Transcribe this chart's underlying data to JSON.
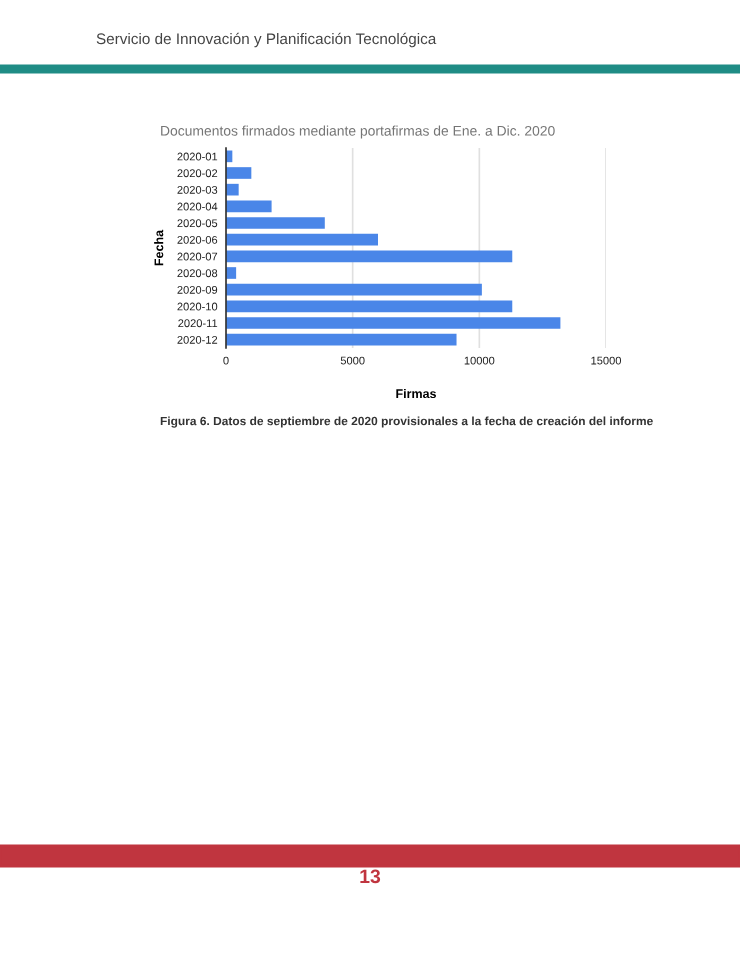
{
  "chart_data": {
    "type": "bar",
    "orientation": "horizontal",
    "title": "Documentos firmados mediante portafirmas de Ene. a Dic. 2020",
    "xlabel": "Firmas",
    "ylabel": "Fecha",
    "categories": [
      "2020-01",
      "2020-02",
      "2020-03",
      "2020-04",
      "2020-05",
      "2020-06",
      "2020-07",
      "2020-08",
      "2020-09",
      "2020-10",
      "2020-11",
      "2020-12"
    ],
    "series": [
      {
        "color": "#4a86e8",
        "values": [
          250,
          1000,
          500,
          1800,
          3900,
          6000,
          11300,
          400,
          10100,
          11300,
          13200,
          9100
        ]
      }
    ],
    "xlim": [
      0,
      15000
    ],
    "xticks": [
      0,
      5000,
      10000,
      15000
    ],
    "grid": "x",
    "legend": false,
    "annotations": [
      "Servicio de Innovación y Planificación Tecnológica",
      "Figura 6. Datos de septiembre de 2020 provisionales a la fecha de creación del informe",
      "13"
    ]
  }
}
